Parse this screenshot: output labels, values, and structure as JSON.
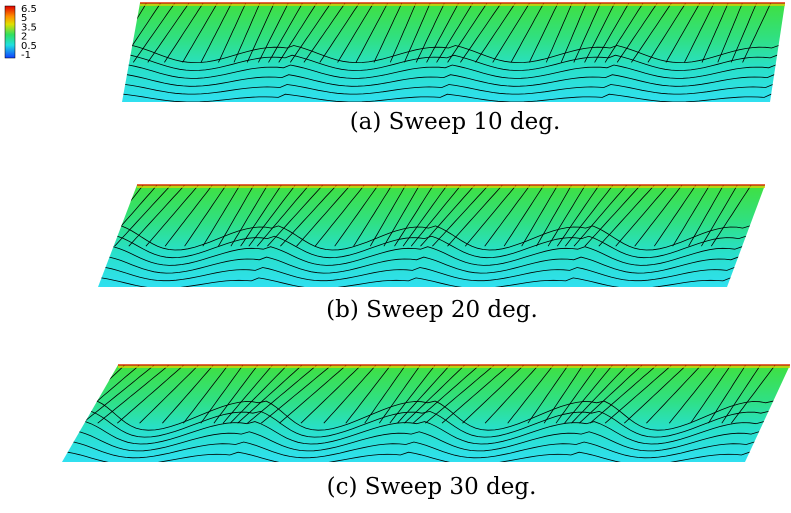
{
  "colorbar": {
    "ticks": [
      "6.5",
      "5",
      "3.5",
      "2",
      "0.5",
      "-1"
    ]
  },
  "panels": [
    {
      "caption": "(a) Sweep 10 deg."
    },
    {
      "caption": "(b) Sweep 20 deg."
    },
    {
      "caption": "(c) Sweep 30 deg."
    }
  ]
}
